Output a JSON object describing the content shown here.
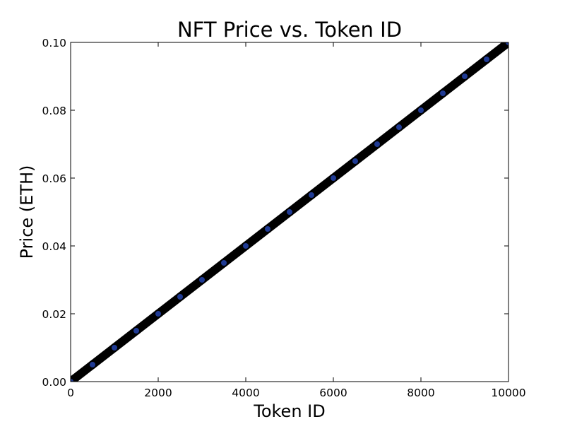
{
  "chart_data": {
    "type": "scatter",
    "title": "NFT Price vs. Token ID",
    "xlabel": "Token ID",
    "ylabel": "Price (ETH)",
    "xlim": [
      0,
      10000
    ],
    "ylim": [
      0,
      0.1
    ],
    "x_ticks": [
      0,
      2000,
      4000,
      6000,
      8000,
      10000
    ],
    "x_tick_labels": [
      "0",
      "2000",
      "4000",
      "6000",
      "8000",
      "10000"
    ],
    "y_ticks": [
      0,
      0.02,
      0.04,
      0.06,
      0.08,
      0.1
    ],
    "y_tick_labels": [
      "0.00",
      "0.02",
      "0.04",
      "0.06",
      "0.08",
      "0.10"
    ],
    "grid": false,
    "legend": "none",
    "series": [
      {
        "x": [
          0,
          500,
          1000,
          1500,
          2000,
          2500,
          3000,
          3500,
          4000,
          4500,
          5000,
          5500,
          6000,
          6500,
          7000,
          7500,
          8000,
          8500,
          9000,
          9500,
          10000
        ],
        "y": [
          0,
          0.005,
          0.01,
          0.015,
          0.02,
          0.025,
          0.03,
          0.035,
          0.04,
          0.045,
          0.05,
          0.055,
          0.06,
          0.065,
          0.07,
          0.075,
          0.08,
          0.085,
          0.09,
          0.095,
          0.1
        ],
        "color": "#000000",
        "edge_color": "#000000",
        "face_color": "#1f3a93"
      }
    ]
  }
}
